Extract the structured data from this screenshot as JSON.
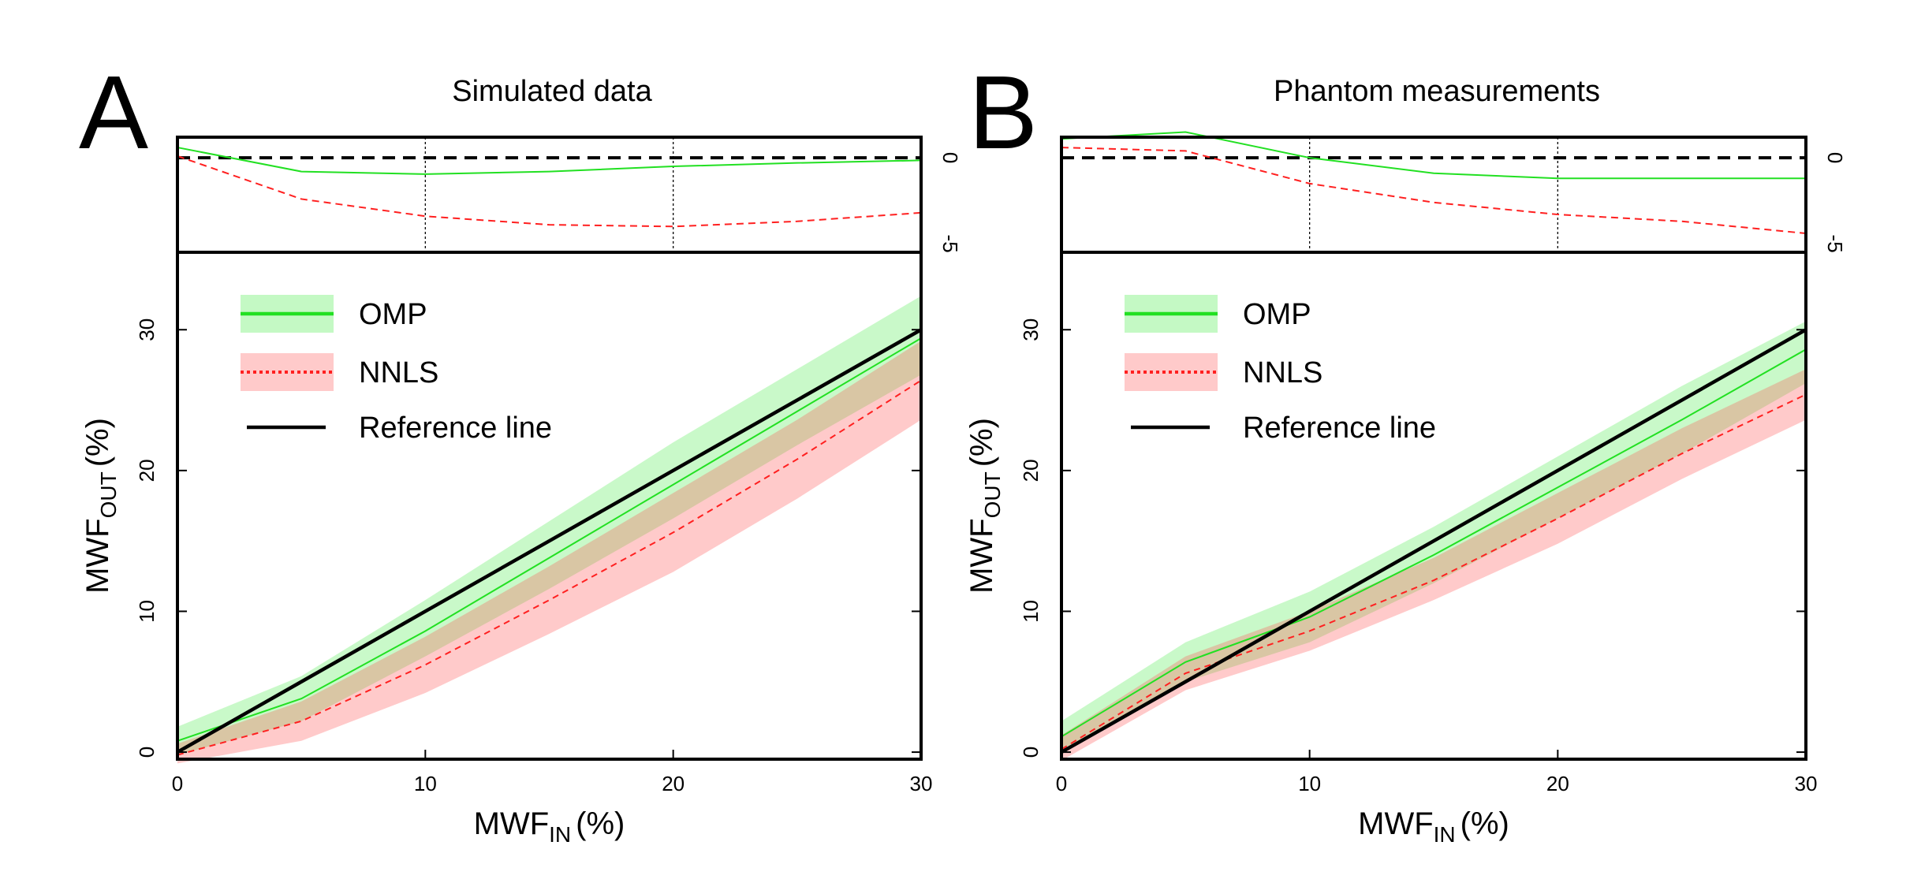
{
  "chart_data": [
    {
      "type": "line",
      "panel_letter": "A",
      "title": "Simulated data",
      "xlabel": {
        "main": "MWF",
        "sub": "IN",
        "unit": "(%)"
      },
      "ylabel": {
        "main": "MWF",
        "sub": "OUT",
        "unit": "(%)"
      },
      "xlim": [
        0,
        30
      ],
      "ylim": [
        -0.5,
        35.5
      ],
      "x_ticks": [
        "0",
        "10",
        "20",
        "30"
      ],
      "y_ticks": [
        "0",
        "10",
        "20",
        "30"
      ],
      "x": [
        0,
        5,
        10,
        15,
        20,
        25,
        30
      ],
      "series": [
        {
          "name": "OMP",
          "color": "#22e022",
          "values": [
            0.8,
            3.8,
            8.6,
            13.8,
            19.0,
            24.2,
            29.4
          ],
          "lower": [
            -0.2,
            2.2,
            6.8,
            11.6,
            16.6,
            21.8,
            26.8
          ],
          "upper": [
            1.8,
            5.4,
            10.8,
            16.4,
            22.0,
            27.2,
            32.4
          ]
        },
        {
          "name": "NNLS",
          "color": "#ff2020",
          "values": [
            -0.2,
            2.2,
            6.2,
            10.8,
            15.6,
            20.8,
            26.4
          ],
          "lower": [
            -0.8,
            0.8,
            4.2,
            8.4,
            12.8,
            18.0,
            23.6
          ],
          "upper": [
            0.6,
            3.6,
            8.2,
            13.2,
            18.4,
            23.6,
            29.2
          ]
        },
        {
          "name": "Reference line",
          "color": "#000000",
          "values": [
            0,
            5,
            10,
            15,
            20,
            25,
            30
          ]
        }
      ],
      "difference": {
        "ylim": [
          -5.5,
          1.2
        ],
        "ticks": [
          "0",
          "-5"
        ],
        "vgrid": [
          10,
          20
        ],
        "series": [
          {
            "name": "OMP",
            "values": [
              0.6,
              -0.8,
              -0.95,
              -0.8,
              -0.5,
              -0.3,
              -0.15
            ]
          },
          {
            "name": "NNLS",
            "values": [
              0.1,
              -2.4,
              -3.4,
              -3.9,
              -4.0,
              -3.7,
              -3.2
            ]
          }
        ]
      },
      "legend_position": "top-left"
    },
    {
      "type": "line",
      "panel_letter": "B",
      "title": "Phantom measurements",
      "xlabel": {
        "main": "MWF",
        "sub": "IN",
        "unit": "(%)"
      },
      "ylabel": {
        "main": "MWF",
        "sub": "OUT",
        "unit": "(%)"
      },
      "xlim": [
        0,
        30
      ],
      "ylim": [
        -0.5,
        35.5
      ],
      "x_ticks": [
        "0",
        "10",
        "20",
        "30"
      ],
      "y_ticks": [
        "0",
        "10",
        "20",
        "30"
      ],
      "x": [
        0,
        5,
        10,
        15,
        20,
        25,
        30
      ],
      "series": [
        {
          "name": "OMP",
          "color": "#22e022",
          "values": [
            1.1,
            6.4,
            9.6,
            14.0,
            18.8,
            23.6,
            28.6
          ],
          "lower": [
            0.0,
            5.0,
            7.8,
            12.0,
            16.6,
            21.2,
            26.2
          ],
          "upper": [
            2.2,
            7.8,
            11.4,
            16.0,
            21.0,
            26.0,
            30.6
          ]
        },
        {
          "name": "NNLS",
          "color": "#ff2020",
          "values": [
            0.2,
            5.6,
            8.6,
            12.2,
            16.6,
            21.2,
            25.4
          ],
          "lower": [
            -0.6,
            4.4,
            7.2,
            10.8,
            14.8,
            19.4,
            23.6
          ],
          "upper": [
            1.2,
            6.8,
            10.0,
            13.8,
            18.4,
            23.0,
            27.2
          ]
        },
        {
          "name": "Reference line",
          "color": "#000000",
          "values": [
            0,
            5,
            10,
            15,
            20,
            25,
            30
          ]
        }
      ],
      "difference": {
        "ylim": [
          -5.5,
          1.2
        ],
        "ticks": [
          "0",
          "-5"
        ],
        "vgrid": [
          10,
          20
        ],
        "series": [
          {
            "name": "OMP",
            "values": [
              1.1,
              1.5,
              0.0,
              -0.9,
              -1.2,
              -1.2,
              -1.2
            ]
          },
          {
            "name": "NNLS",
            "values": [
              0.6,
              0.4,
              -1.5,
              -2.6,
              -3.3,
              -3.7,
              -4.4
            ]
          }
        ]
      },
      "legend_position": "top-left"
    }
  ]
}
